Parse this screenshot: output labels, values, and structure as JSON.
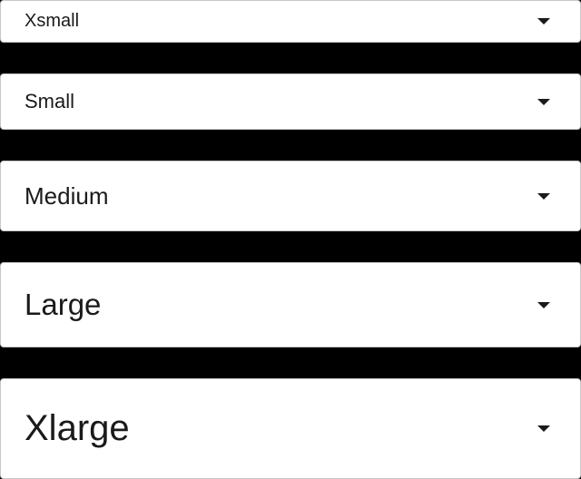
{
  "selects": [
    {
      "size": "xsmall",
      "value": "Xsmall"
    },
    {
      "size": "small",
      "value": "Small"
    },
    {
      "size": "medium",
      "value": "Medium"
    },
    {
      "size": "large",
      "value": "Large"
    },
    {
      "size": "xlarge",
      "value": "Xlarge"
    }
  ],
  "icons": {
    "caret": "caret-down-icon"
  },
  "colors": {
    "background": "#000000",
    "field": "#ffffff",
    "border": "#c8c8c8",
    "text": "#1a1a1a"
  }
}
